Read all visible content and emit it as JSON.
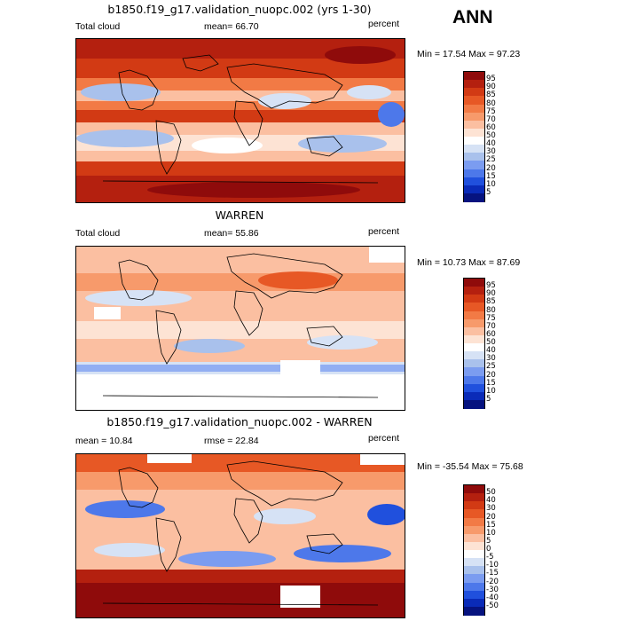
{
  "season": "ANN",
  "panels": [
    {
      "title": "b1850.f19_g17.validation_nuopc.002 (yrs 1-30)",
      "left": "Total cloud",
      "mid": "mean=  66.70",
      "units": "percent",
      "minmax": "Min =  17.54 Max =  97.23",
      "ticks": [
        "95",
        "90",
        "85",
        "80",
        "75",
        "70",
        "60",
        "50",
        "40",
        "30",
        "25",
        "20",
        "15",
        "10",
        "5"
      ],
      "colors": [
        "#8f0b0b",
        "#b4200f",
        "#d23a14",
        "#e75825",
        "#f27a45",
        "#f79a6b",
        "#fbbfa1",
        "#fde3d4",
        "#ffffff",
        "#d6e2f5",
        "#a9c1ec",
        "#7b9cf0",
        "#4d78ea",
        "#2050dd",
        "#0a2bb8",
        "#06137f"
      ]
    },
    {
      "title": "WARREN",
      "left": "Total cloud",
      "mid": "mean=  55.86",
      "units": "percent",
      "minmax": "Min =  10.73 Max =  87.69",
      "ticks": [
        "95",
        "90",
        "85",
        "80",
        "75",
        "70",
        "60",
        "50",
        "40",
        "30",
        "25",
        "20",
        "15",
        "10",
        "5"
      ],
      "colors": [
        "#8f0b0b",
        "#b4200f",
        "#d23a14",
        "#e75825",
        "#f27a45",
        "#f79a6b",
        "#fbbfa1",
        "#fde3d4",
        "#ffffff",
        "#d6e2f5",
        "#a9c1ec",
        "#7b9cf0",
        "#4d78ea",
        "#2050dd",
        "#0a2bb8",
        "#06137f"
      ]
    },
    {
      "title": "b1850.f19_g17.validation_nuopc.002 - WARREN",
      "left": "mean =  10.84",
      "mid": "rmse =  22.84",
      "units": "percent",
      "minmax": "Min = -35.54 Max =  75.68",
      "ticks": [
        "50",
        "40",
        "30",
        "20",
        "15",
        "10",
        "5",
        "0",
        "-5",
        "-10",
        "-15",
        "-20",
        "-30",
        "-40",
        "-50"
      ],
      "colors": [
        "#8f0b0b",
        "#b4200f",
        "#d23a14",
        "#e75825",
        "#f27a45",
        "#f79a6b",
        "#fbbfa1",
        "#fde3d4",
        "#ffffff",
        "#d6e2f5",
        "#a9c1ec",
        "#7b9cf0",
        "#4d78ea",
        "#2050dd",
        "#0a2bb8",
        "#06137f"
      ]
    }
  ]
}
